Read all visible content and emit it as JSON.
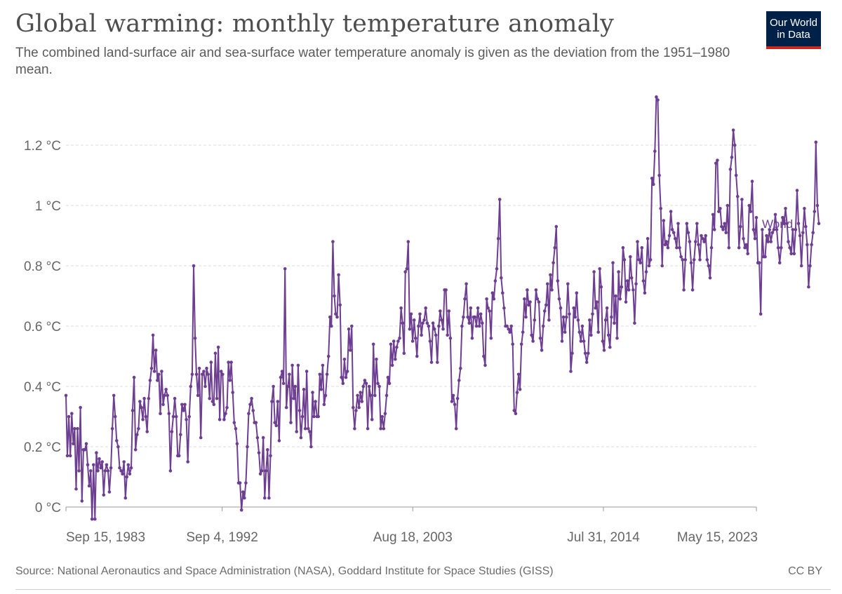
{
  "header": {
    "title": "Global warming: monthly temperature anomaly",
    "subtitle": "The combined land-surface air and sea-surface water temperature anomaly is given as the deviation from the 1951–1980 mean."
  },
  "logo": {
    "line1": "Our World",
    "line2": "in Data",
    "bg_color": "#002147",
    "accent_color": "#ce261e"
  },
  "footer": {
    "source": "Source: National Aeronautics and Space Administration (NASA), Goddard Institute for Space Studies (GISS)",
    "license": "CC BY"
  },
  "chart_data": {
    "type": "line",
    "title": "Global warming: monthly temperature anomaly",
    "xlabel": "",
    "ylabel": "",
    "x_axis": {
      "type": "date",
      "start": "1983-09-15",
      "end": "2023-05-15",
      "ticks": [
        "Sep 15, 1983",
        "Sep 4, 1992",
        "Aug 18, 2003",
        "Jul 31, 2014",
        "May 15, 2023"
      ]
    },
    "y_axis": {
      "ylim": [
        -0.04,
        1.37
      ],
      "ticks": [
        0,
        0.2,
        0.4,
        0.6,
        0.8,
        1.0,
        1.2
      ],
      "tick_labels": [
        "0 °C",
        "0.2 °C",
        "0.4 °C",
        "0.6 °C",
        "0.8 °C",
        "1 °C",
        "1.2 °C"
      ]
    },
    "grid": true,
    "legend": "right-end-label",
    "series": [
      {
        "name": "World",
        "color": "#6d3e91",
        "start_date": "1983-09-15",
        "step": "monthly",
        "values": [
          0.37,
          0.17,
          0.3,
          0.17,
          0.31,
          0.21,
          0.26,
          0.06,
          0.26,
          0.12,
          0.33,
          0.02,
          0.19,
          0.19,
          0.21,
          0.14,
          0.07,
          0.12,
          -0.04,
          0.14,
          -0.04,
          0.18,
          0.12,
          0.16,
          0.13,
          0.15,
          0.04,
          0.12,
          0.14,
          0.12,
          0.05,
          0.13,
          0.26,
          0.37,
          0.3,
          0.22,
          0.2,
          0.13,
          0.12,
          0.11,
          0.15,
          0.03,
          0.1,
          0.14,
          0.11,
          0.13,
          0.32,
          0.43,
          0.19,
          0.24,
          0.26,
          0.35,
          0.33,
          0.29,
          0.36,
          0.3,
          0.25,
          0.36,
          0.42,
          0.46,
          0.57,
          0.45,
          0.52,
          0.42,
          0.44,
          0.31,
          0.45,
          0.34,
          0.37,
          0.39,
          0.37,
          0.31,
          0.12,
          0.25,
          0.3,
          0.36,
          0.3,
          0.17,
          0.17,
          0.24,
          0.34,
          0.32,
          0.34,
          0.29,
          0.15,
          0.3,
          0.4,
          0.44,
          0.8,
          0.56,
          0.44,
          0.37,
          0.46,
          0.23,
          0.44,
          0.45,
          0.4,
          0.46,
          0.44,
          0.36,
          0.48,
          0.35,
          0.34,
          0.51,
          0.36,
          0.53,
          0.29,
          0.45,
          0.44,
          0.29,
          0.31,
          0.33,
          0.48,
          0.42,
          0.48,
          0.38,
          0.28,
          0.26,
          0.21,
          0.08,
          0.08,
          -0.01,
          0.05,
          0.03,
          0.08,
          0.2,
          0.31,
          0.34,
          0.36,
          0.32,
          0.28,
          0.28,
          0.23,
          0.18,
          0.11,
          0.12,
          0.23,
          0.03,
          0.12,
          0.19,
          0.03,
          0.17,
          0.35,
          0.4,
          0.28,
          0.27,
          0.35,
          0.22,
          0.43,
          0.45,
          0.41,
          0.79,
          0.33,
          0.4,
          0.44,
          0.28,
          0.47,
          0.36,
          0.4,
          0.25,
          0.47,
          0.32,
          0.23,
          0.3,
          0.39,
          0.26,
          0.45,
          0.26,
          0.25,
          0.2,
          0.38,
          0.3,
          0.35,
          0.3,
          0.3,
          0.44,
          0.39,
          0.47,
          0.34,
          0.37,
          0.44,
          0.5,
          0.63,
          0.6,
          0.88,
          0.7,
          0.64,
          0.63,
          0.77,
          0.67,
          0.43,
          0.41,
          0.49,
          0.43,
          0.45,
          0.59,
          0.52,
          0.6,
          0.33,
          0.26,
          0.32,
          0.37,
          0.33,
          0.38,
          0.35,
          0.4,
          0.42,
          0.41,
          0.26,
          0.4,
          0.37,
          0.29,
          0.54,
          0.37,
          0.49,
          0.41,
          0.4,
          0.26,
          0.3,
          0.26,
          0.31,
          0.37,
          0.43,
          0.41,
          0.54,
          0.47,
          0.55,
          0.49,
          0.53,
          0.55,
          0.56,
          0.66,
          0.61,
          0.51,
          0.78,
          0.79,
          0.88,
          0.59,
          0.64,
          0.55,
          0.62,
          0.56,
          0.5,
          0.6,
          0.64,
          0.57,
          0.61,
          0.62,
          0.66,
          0.61,
          0.6,
          0.55,
          0.48,
          0.61,
          0.59,
          0.57,
          0.48,
          0.6,
          0.65,
          0.62,
          0.59,
          0.72,
          0.72,
          0.57,
          0.65,
          0.56,
          0.35,
          0.37,
          0.34,
          0.26,
          0.36,
          0.42,
          0.46,
          0.6,
          0.63,
          0.69,
          0.74,
          0.63,
          0.61,
          0.66,
          0.56,
          0.63,
          0.63,
          0.6,
          0.66,
          0.6,
          0.64,
          0.61,
          0.5,
          0.47,
          0.69,
          0.66,
          0.65,
          0.56,
          0.71,
          0.69,
          0.75,
          0.79,
          0.89,
          1.02,
          0.76,
          0.71,
          0.66,
          0.6,
          0.6,
          0.59,
          0.58,
          0.6,
          0.54,
          0.32,
          0.31,
          0.38,
          0.44,
          0.39,
          0.54,
          0.58,
          0.69,
          0.63,
          0.72,
          0.67,
          0.68,
          0.57,
          0.55,
          0.62,
          0.72,
          0.69,
          0.68,
          0.56,
          0.52,
          0.6,
          0.65,
          0.67,
          0.74,
          0.62,
          0.77,
          0.72,
          0.81,
          0.86,
          0.93,
          0.75,
          0.69,
          0.66,
          0.55,
          0.63,
          0.58,
          0.63,
          0.74,
          0.64,
          0.45,
          0.51,
          0.66,
          0.63,
          0.71,
          0.62,
          0.58,
          0.55,
          0.6,
          0.55,
          0.51,
          0.48,
          0.51,
          0.62,
          0.57,
          0.64,
          0.78,
          0.66,
          0.68,
          0.58,
          0.79,
          0.73,
          0.55,
          0.52,
          0.62,
          0.66,
          0.57,
          0.53,
          0.63,
          0.81,
          0.61,
          0.7,
          0.56,
          0.78,
          0.69,
          0.73,
          0.86,
          0.82,
          0.68,
          0.75,
          0.72,
          0.83,
          0.76,
          0.72,
          0.61,
          0.74,
          0.88,
          0.82,
          0.81,
          0.86,
          0.75,
          0.71,
          0.78,
          0.89,
          0.8,
          0.82,
          1.09,
          1.07,
          1.18,
          1.36,
          1.35,
          1.1,
          0.99,
          0.8,
          0.95,
          0.87,
          0.88,
          0.86,
          0.9,
          0.98,
          0.92,
          0.91,
          0.89,
          0.86,
          0.94,
          0.86,
          0.83,
          0.82,
          0.72,
          0.82,
          0.94,
          0.91,
          0.88,
          0.81,
          0.72,
          0.82,
          0.88,
          0.94,
          0.87,
          0.82,
          0.9,
          0.89,
          0.88,
          0.9,
          0.82,
          0.8,
          0.76,
          0.86,
          0.97,
          0.92,
          1.14,
          1.15,
          0.98,
          0.99,
          0.93,
          0.92,
          0.94,
          0.91,
          1.0,
          0.86,
          1.12,
          1.16,
          1.25,
          1.2,
          1.1,
          1.03,
          0.86,
          0.93,
          1.02,
          0.89,
          0.86,
          0.87,
          0.84,
          1.0,
          0.98,
          1.08,
          0.92,
          0.89,
          0.96,
          0.81,
          0.81,
          0.64,
          0.92,
          0.83,
          0.83,
          0.9,
          0.88,
          0.92,
          0.88,
          0.91,
          0.92,
          0.97,
          0.92,
          0.86,
          0.81,
          0.86,
          0.96,
          0.94,
          0.99,
          0.94,
          0.88,
          0.86,
          0.84,
          0.92,
          0.84,
          0.92,
          1.05,
          0.94,
          0.9,
          0.8,
          0.91,
          0.99,
          0.93,
          0.87,
          0.73,
          0.8,
          0.87,
          0.91,
          0.98,
          1.21,
          1.0,
          0.94
        ]
      }
    ]
  }
}
